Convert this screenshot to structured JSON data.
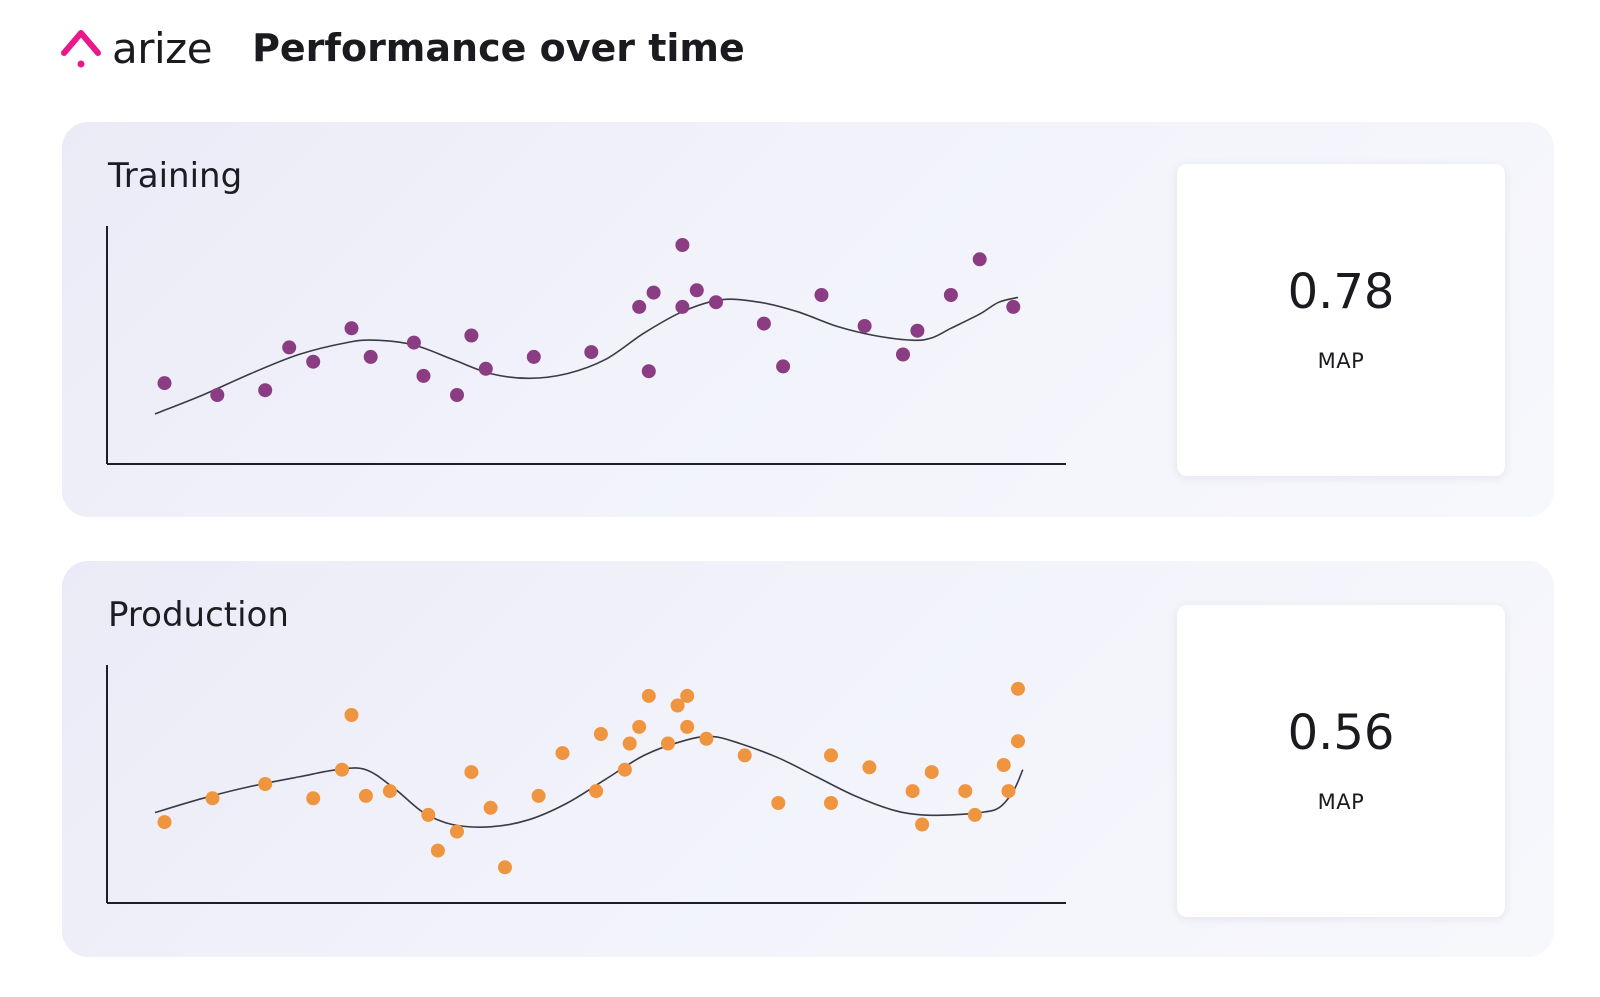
{
  "header": {
    "logo_text": "arize",
    "title": "Performance over time",
    "brand_color": "#e8198b"
  },
  "panels": [
    {
      "title": "Training",
      "metric": {
        "value": "0.78",
        "label": "MAP"
      }
    },
    {
      "title": "Production",
      "metric": {
        "value": "0.56",
        "label": "MAP"
      }
    }
  ],
  "chart_data": [
    {
      "type": "scatter",
      "title": "Training",
      "xlabel": "",
      "ylabel": "",
      "xlim": [
        0,
        100
      ],
      "ylim": [
        0,
        100
      ],
      "grid": false,
      "point_color": "#8b3d84",
      "line_color": "#3a3a44",
      "points": [
        [
          6,
          34
        ],
        [
          11.5,
          29
        ],
        [
          16.5,
          31
        ],
        [
          19,
          49
        ],
        [
          21.5,
          43
        ],
        [
          25.5,
          57
        ],
        [
          27.5,
          45
        ],
        [
          32,
          51
        ],
        [
          33,
          37
        ],
        [
          36.5,
          29
        ],
        [
          38,
          54
        ],
        [
          39.5,
          40
        ],
        [
          44.5,
          45
        ],
        [
          50.5,
          47
        ],
        [
          55.5,
          66
        ],
        [
          56.5,
          39
        ],
        [
          57,
          72
        ],
        [
          60,
          92
        ],
        [
          60,
          66
        ],
        [
          61.5,
          73
        ],
        [
          63.5,
          68
        ],
        [
          68.5,
          59
        ],
        [
          70.5,
          41
        ],
        [
          74.5,
          71
        ],
        [
          79,
          58
        ],
        [
          83,
          46
        ],
        [
          84.5,
          56
        ],
        [
          88,
          71
        ],
        [
          91,
          86
        ],
        [
          94.5,
          66
        ]
      ],
      "trend": [
        [
          5,
          21
        ],
        [
          10,
          29
        ],
        [
          15,
          38
        ],
        [
          20,
          46
        ],
        [
          25,
          51
        ],
        [
          28,
          52
        ],
        [
          32,
          50
        ],
        [
          36,
          44
        ],
        [
          40,
          38
        ],
        [
          44,
          36
        ],
        [
          48,
          38
        ],
        [
          52,
          44
        ],
        [
          56,
          55
        ],
        [
          60,
          64
        ],
        [
          64,
          69
        ],
        [
          68,
          68
        ],
        [
          72,
          64
        ],
        [
          76,
          58
        ],
        [
          80,
          54
        ],
        [
          84,
          52
        ],
        [
          86,
          53
        ],
        [
          88,
          57
        ],
        [
          91,
          63
        ],
        [
          93,
          68
        ],
        [
          95,
          70
        ]
      ]
    },
    {
      "type": "scatter",
      "title": "Production",
      "xlabel": "",
      "ylabel": "",
      "xlim": [
        0,
        100
      ],
      "ylim": [
        0,
        100
      ],
      "grid": false,
      "point_color": "#f0953f",
      "line_color": "#3a3a44",
      "points": [
        [
          6,
          34
        ],
        [
          11,
          44
        ],
        [
          16.5,
          50
        ],
        [
          21.5,
          44
        ],
        [
          24.5,
          56
        ],
        [
          25.5,
          79
        ],
        [
          27,
          45
        ],
        [
          29.5,
          47
        ],
        [
          33.5,
          37
        ],
        [
          34.5,
          22
        ],
        [
          36.5,
          30
        ],
        [
          38,
          55
        ],
        [
          40,
          40
        ],
        [
          41.5,
          15
        ],
        [
          45,
          45
        ],
        [
          47.5,
          63
        ],
        [
          51,
          47
        ],
        [
          51.5,
          71
        ],
        [
          54,
          56
        ],
        [
          54.5,
          67
        ],
        [
          55.5,
          74
        ],
        [
          56.5,
          87
        ],
        [
          58.5,
          67
        ],
        [
          59.5,
          83
        ],
        [
          60.5,
          74
        ],
        [
          60.5,
          87
        ],
        [
          62.5,
          69
        ],
        [
          66.5,
          62
        ],
        [
          70,
          42
        ],
        [
          75.5,
          62
        ],
        [
          75.5,
          42
        ],
        [
          79.5,
          57
        ],
        [
          84,
          47
        ],
        [
          85,
          33
        ],
        [
          86,
          55
        ],
        [
          89.5,
          47
        ],
        [
          90.5,
          37
        ],
        [
          93.5,
          58
        ],
        [
          94,
          47
        ],
        [
          95,
          68
        ],
        [
          95,
          90
        ]
      ],
      "trend": [
        [
          5,
          38
        ],
        [
          10,
          44
        ],
        [
          15,
          49
        ],
        [
          20,
          53
        ],
        [
          24,
          56
        ],
        [
          27,
          56
        ],
        [
          30,
          48
        ],
        [
          33,
          38
        ],
        [
          36,
          33
        ],
        [
          40,
          32
        ],
        [
          44,
          35
        ],
        [
          48,
          42
        ],
        [
          52,
          52
        ],
        [
          56,
          62
        ],
        [
          60,
          68
        ],
        [
          63,
          70
        ],
        [
          66,
          67
        ],
        [
          70,
          61
        ],
        [
          74,
          53
        ],
        [
          78,
          45
        ],
        [
          82,
          39
        ],
        [
          85,
          37
        ],
        [
          88,
          37
        ],
        [
          91,
          38
        ],
        [
          93,
          40
        ],
        [
          94.5,
          47
        ],
        [
          95.5,
          56
        ]
      ]
    }
  ]
}
